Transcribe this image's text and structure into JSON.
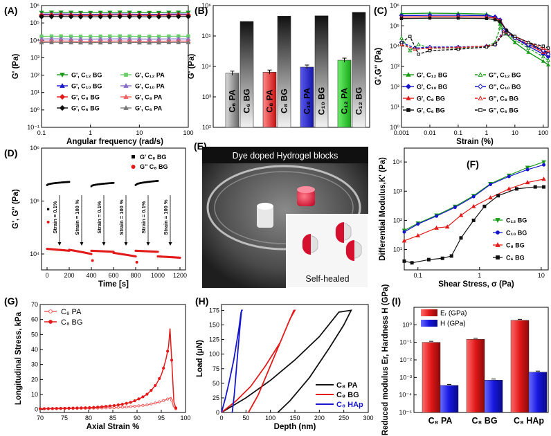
{
  "figure": {
    "colors": {
      "c12": "#1a9a1a",
      "c10": "#1616cc",
      "c8": "#e31a1a",
      "c6": "#111111",
      "c12pa": "#6ccf6c",
      "c10pa": "#8a6cc8",
      "c8pa": "#f06060",
      "c6pa": "#777777"
    },
    "photo": {
      "title": "Dye doped Hydrogel blocks",
      "inset_caption": "Self-healed"
    }
  },
  "chart_data": [
    {
      "panel": "(A)",
      "type": "line",
      "xscale": "log",
      "yscale": "log",
      "xlabel": "Angular frequency (rad/s)",
      "ylabel": "G' (Pa)",
      "xlim": [
        0.1,
        100
      ],
      "ylim": [
        0.1,
        1000000
      ],
      "xticks": [
        "0.1",
        "1",
        "10",
        "100"
      ],
      "yticks": [
        "10⁻¹",
        "10⁰",
        "10¹",
        "10²",
        "10³",
        "10⁴",
        "10⁵",
        "10⁶"
      ],
      "x": [
        0.1,
        0.16,
        0.25,
        0.4,
        0.63,
        1,
        1.6,
        2.5,
        4,
        6.3,
        10,
        16,
        25,
        40,
        63,
        100
      ],
      "series": [
        {
          "name": "G', C₁₂ BG",
          "value": 390000,
          "color": "c12"
        },
        {
          "name": "G', C₁₀ BG",
          "value": 320000,
          "color": "c10"
        },
        {
          "name": "G', C₈ BG",
          "value": 280000,
          "color": "c8"
        },
        {
          "name": "G', C₆ BG",
          "value": 230000,
          "color": "c6"
        },
        {
          "name": "G', C₁₂ PA",
          "value": 17000,
          "color": "c12pa"
        },
        {
          "name": "G', C₁₀ PA",
          "value": 12000,
          "color": "c10pa"
        },
        {
          "name": "G', C₈ PA",
          "value": 9000,
          "color": "c8pa"
        },
        {
          "name": "G', C₆ PA",
          "value": 7500,
          "color": "c6pa"
        }
      ]
    },
    {
      "panel": "(B)",
      "type": "bar",
      "yscale": "log",
      "ylabel": "G' (Pa)",
      "ylim": [
        100,
        1000000
      ],
      "yticks": [
        "10²",
        "10³",
        "10⁴",
        "10⁵",
        "10⁶"
      ],
      "groups": [
        {
          "pa_label": "C₆ PA",
          "bg_label": "C₆ BG",
          "pa": 6000,
          "bg": 300000,
          "color": "c6pa"
        },
        {
          "pa_label": "C₈ PA",
          "bg_label": "C₈ BG",
          "pa": 6500,
          "bg": 450000,
          "color": "c8"
        },
        {
          "pa_label": "C₁₀ PA",
          "bg_label": "C₁₀ BG",
          "pa": 9500,
          "bg": 460000,
          "color": "c10"
        },
        {
          "pa_label": "C₁₂ PA",
          "bg_label": "C₁₂ BG",
          "pa": 16000,
          "bg": 600000,
          "color": "c12"
        }
      ]
    },
    {
      "panel": "(C)",
      "type": "line",
      "xscale": "log",
      "yscale": "log",
      "xlabel": "Strain (%)",
      "ylabel": "G',G'' (Pa)",
      "xlim": [
        0.001,
        150
      ],
      "ylim": [
        1,
        1000000
      ],
      "xticks": [
        "0.001",
        "0.01",
        "0.1",
        "1",
        "10",
        "100"
      ],
      "yticks": [
        "10⁰",
        "10¹",
        "10²",
        "10³",
        "10⁴",
        "10⁵",
        "10⁶"
      ],
      "series": [
        {
          "name": "G', C₁₂ BG",
          "color": "c12",
          "style": "solid",
          "x": [
            0.001,
            0.01,
            0.1,
            1,
            2,
            3,
            5,
            10,
            30,
            100,
            150
          ],
          "y": [
            400000,
            420000,
            410000,
            380000,
            250000,
            120000,
            40000,
            15000,
            5000,
            1800,
            1200
          ]
        },
        {
          "name": "G', C₁₀ BG",
          "color": "c10",
          "style": "solid",
          "x": [
            0.001,
            0.01,
            0.1,
            1,
            2,
            3,
            5,
            10,
            30,
            100,
            150
          ],
          "y": [
            320000,
            330000,
            330000,
            320000,
            280000,
            200000,
            60000,
            25000,
            10000,
            4000,
            3000
          ]
        },
        {
          "name": "G', C₈ BG",
          "color": "c8",
          "style": "solid",
          "x": [
            0.001,
            0.01,
            0.1,
            1,
            2,
            3,
            5,
            10,
            30,
            100,
            150
          ],
          "y": [
            270000,
            280000,
            280000,
            270000,
            240000,
            180000,
            60000,
            25000,
            12000,
            5000,
            4000
          ]
        },
        {
          "name": "G', C₆ BG",
          "color": "c6",
          "style": "solid",
          "x": [
            0.001,
            0.01,
            0.1,
            1,
            2,
            3,
            5,
            10,
            30,
            100,
            150
          ],
          "y": [
            230000,
            240000,
            240000,
            230000,
            200000,
            160000,
            60000,
            30000,
            15000,
            6000,
            5000
          ]
        },
        {
          "name": "G'', C₁₂ BG",
          "color": "c12",
          "style": "dashed",
          "x": [
            0.001,
            0.002,
            0.004,
            0.01,
            0.1,
            1,
            2,
            3,
            4,
            10,
            30,
            100,
            150
          ],
          "y": [
            25000,
            6000,
            12000,
            8000,
            8000,
            10000,
            15000,
            80000,
            60000,
            20000,
            8000,
            3000,
            2000
          ]
        },
        {
          "name": "G'', C₁₀ BG",
          "color": "c10",
          "style": "dashed",
          "x": [
            0.001,
            0.003,
            0.01,
            0.1,
            1,
            2,
            4,
            6,
            10,
            30,
            100,
            150
          ],
          "y": [
            15000,
            8000,
            9000,
            9000,
            10000,
            12000,
            60000,
            40000,
            25000,
            12000,
            6000,
            4000
          ]
        },
        {
          "name": "G'', C₈ BG",
          "color": "c8",
          "style": "dashed",
          "x": [
            0.001,
            0.003,
            0.01,
            0.1,
            1,
            2,
            4,
            6,
            10,
            30,
            100,
            150
          ],
          "y": [
            12000,
            7000,
            8000,
            8500,
            10000,
            12000,
            50000,
            40000,
            30000,
            15000,
            8000,
            6000
          ]
        },
        {
          "name": "G'', C₆ BG",
          "color": "c6",
          "style": "dashed",
          "x": [
            0.001,
            0.002,
            0.004,
            0.01,
            0.1,
            1,
            2,
            4,
            6,
            10,
            30,
            100,
            150
          ],
          "y": [
            15000,
            30000,
            4000,
            6000,
            7000,
            9000,
            12000,
            40000,
            40000,
            30000,
            15000,
            10000,
            8000
          ]
        }
      ]
    },
    {
      "panel": "(D)",
      "type": "scatter",
      "yscale": "log",
      "xlabel": "Time [s]",
      "ylabel": "G', G'' (Pa)",
      "xlim": [
        -50,
        1250
      ],
      "ylim": [
        5000,
        1000000
      ],
      "xticks": [
        "0",
        "200",
        "400",
        "600",
        "800",
        "1000",
        "1200"
      ],
      "yticks": [
        "10⁴",
        "10⁵",
        "10⁶"
      ],
      "legend": [
        "G' C₈ BG",
        "G'' C₈ BG"
      ],
      "annotations": [
        "Strain = 0.1%",
        "Strain = 100 %",
        "Strain = 0.1%",
        "Strain = 100 %",
        "Strain = 0.1%",
        "Strain = 100 %"
      ],
      "segments": [
        {
          "t": [
            0,
            200
          ],
          "g1": 200000,
          "g1_end": 230000,
          "g2": 12500,
          "g2_end": 11500
        },
        {
          "t": [
            200,
            400
          ],
          "g1": null,
          "g2": 12000,
          "g2_end": 10000
        },
        {
          "t": [
            400,
            600
          ],
          "g1": 190000,
          "g1_end": 220000,
          "g2": 11500,
          "g2_end": 11000
        },
        {
          "t": [
            600,
            800
          ],
          "g1": null,
          "g2": 10500,
          "g2_end": 9000
        },
        {
          "t": [
            800,
            1000
          ],
          "g1": 200000,
          "g1_end": 240000,
          "g2": 11500,
          "g2_end": 11000
        },
        {
          "t": [
            1000,
            1200
          ],
          "g1": null,
          "g2": 9000,
          "g2_end": 8500
        }
      ],
      "outliers": [
        {
          "t": 10,
          "g1": 70000,
          "g2": 40000
        },
        {
          "t": 410,
          "g2": 7500
        },
        {
          "t": 810,
          "g2": 7000
        }
      ]
    },
    {
      "panel": "(F)",
      "type": "line",
      "xscale": "log",
      "yscale": "log",
      "xlabel": "Shear Stress, σ (Pa)",
      "ylabel": "Differential Modulus,K' (Pa)",
      "xlim": [
        0.06,
        13
      ],
      "ylim": [
        2,
        30000
      ],
      "xticks": [
        "0.1",
        "1",
        "10"
      ],
      "yticks": [
        "10¹",
        "10²",
        "10³",
        "10⁴"
      ],
      "series": [
        {
          "name": "C₁₂ BG",
          "color": "c12",
          "x": [
            0.06,
            0.1,
            0.2,
            0.4,
            0.8,
            1.5,
            3,
            6,
            11
          ],
          "y": [
            45,
            80,
            150,
            300,
            700,
            1800,
            3500,
            6500,
            10000
          ]
        },
        {
          "name": "C₁₀ BG",
          "color": "c10",
          "x": [
            0.06,
            0.1,
            0.2,
            0.4,
            0.8,
            1.5,
            3,
            6,
            11
          ],
          "y": [
            40,
            75,
            140,
            280,
            650,
            1700,
            3200,
            5500,
            8000
          ]
        },
        {
          "name": "C₈ BG",
          "color": "c8",
          "x": [
            0.06,
            0.1,
            0.2,
            0.3,
            0.5,
            0.8,
            1.5,
            3,
            6,
            11
          ],
          "y": [
            20,
            30,
            55,
            60,
            150,
            300,
            600,
            1200,
            2000,
            2600
          ]
        },
        {
          "name": "C₆ BG",
          "color": "c6",
          "x": [
            0.06,
            0.08,
            0.15,
            0.25,
            0.35,
            0.5,
            0.8,
            1.2,
            2,
            4,
            8,
            11
          ],
          "y": [
            4,
            3.5,
            4.5,
            5,
            6,
            25,
            100,
            300,
            700,
            1200,
            1400,
            1400
          ]
        }
      ]
    },
    {
      "panel": "(G)",
      "type": "line",
      "xlabel": "Axial Strain %",
      "ylabel": "Longitudinal Stress, kPa",
      "xlim": [
        70,
        100
      ],
      "ylim": [
        -2,
        70
      ],
      "xticks": [
        "70",
        "75",
        "80",
        "85",
        "90",
        "95",
        "100"
      ],
      "yticks": [
        "0",
        "10",
        "20",
        "30",
        "40",
        "50",
        "60",
        "70"
      ],
      "series": [
        {
          "name": "C₈ PA",
          "color": "c8pa",
          "x": [
            70,
            75,
            80,
            85,
            88,
            90,
            92,
            94,
            95,
            96,
            97,
            97.5,
            98
          ],
          "y": [
            0.4,
            0.6,
            0.8,
            1.2,
            1.7,
            2.3,
            3,
            4.5,
            5.5,
            6.5,
            8,
            2,
            0.5
          ]
        },
        {
          "name": "C₈ BG",
          "color": "c8",
          "x": [
            70,
            75,
            80,
            82,
            85,
            87,
            89,
            90,
            91,
            92,
            93,
            94,
            95,
            95.5,
            96,
            96.5,
            96.8,
            97.2,
            97.6,
            98
          ],
          "y": [
            0.5,
            0.8,
            1.2,
            1.6,
            2.5,
            3.5,
            5,
            6.5,
            8,
            10,
            13,
            17,
            23,
            28,
            34,
            42,
            54,
            30,
            5,
            1
          ]
        }
      ]
    },
    {
      "panel": "(H)",
      "type": "line",
      "xlabel": "Depth (nm)",
      "ylabel": "Load (μN)",
      "xlim": [
        0,
        300
      ],
      "ylim": [
        0,
        185
      ],
      "xticks": [
        "0",
        "50",
        "100",
        "150",
        "200",
        "250",
        "300"
      ],
      "yticks": [
        "0",
        "25",
        "50",
        "75",
        "100",
        "125",
        "150",
        "175"
      ],
      "series": [
        {
          "name": "C₈ PA",
          "color": "c6",
          "x": [
            0,
            50,
            100,
            150,
            200,
            240,
            265,
            265,
            250,
            220,
            180,
            140,
            115
          ],
          "y": [
            0,
            25,
            55,
            90,
            130,
            172,
            175,
            175,
            150,
            110,
            60,
            20,
            0
          ]
        },
        {
          "name": "C₈ BG",
          "color": "c8",
          "x": [
            0,
            30,
            60,
            90,
            120,
            140,
            150,
            148,
            135,
            115,
            95,
            75,
            55
          ],
          "y": [
            0,
            20,
            45,
            80,
            120,
            160,
            175,
            175,
            150,
            110,
            70,
            30,
            0
          ]
        },
        {
          "name": "C₈ HAp",
          "color": "c10",
          "x": [
            0,
            8,
            15,
            25,
            35,
            40,
            42,
            41,
            38,
            34,
            30,
            26,
            22
          ],
          "y": [
            0,
            25,
            50,
            90,
            140,
            172,
            175,
            175,
            150,
            110,
            70,
            30,
            0
          ]
        }
      ]
    },
    {
      "panel": "(I)",
      "type": "bar",
      "yscale": "log",
      "ylabel": "Reduced modulus Er, Hardness H (GPa)",
      "ylim": [
        1e-05,
        10
      ],
      "yticks": [
        "10⁻⁵",
        "10⁻⁴",
        "10⁻³",
        "10⁻²",
        "10⁻¹",
        "10⁰"
      ],
      "categories": [
        "C₈ PA",
        "C₈ BG",
        "C₈ HAp"
      ],
      "series": [
        {
          "name": "Eᵣ (GPa)",
          "color": "c8",
          "values": [
            0.1,
            0.15,
            1.8
          ]
        },
        {
          "name": "H (GPa)",
          "color": "c10",
          "values": [
            0.00035,
            0.0007,
            0.002
          ]
        }
      ]
    }
  ]
}
